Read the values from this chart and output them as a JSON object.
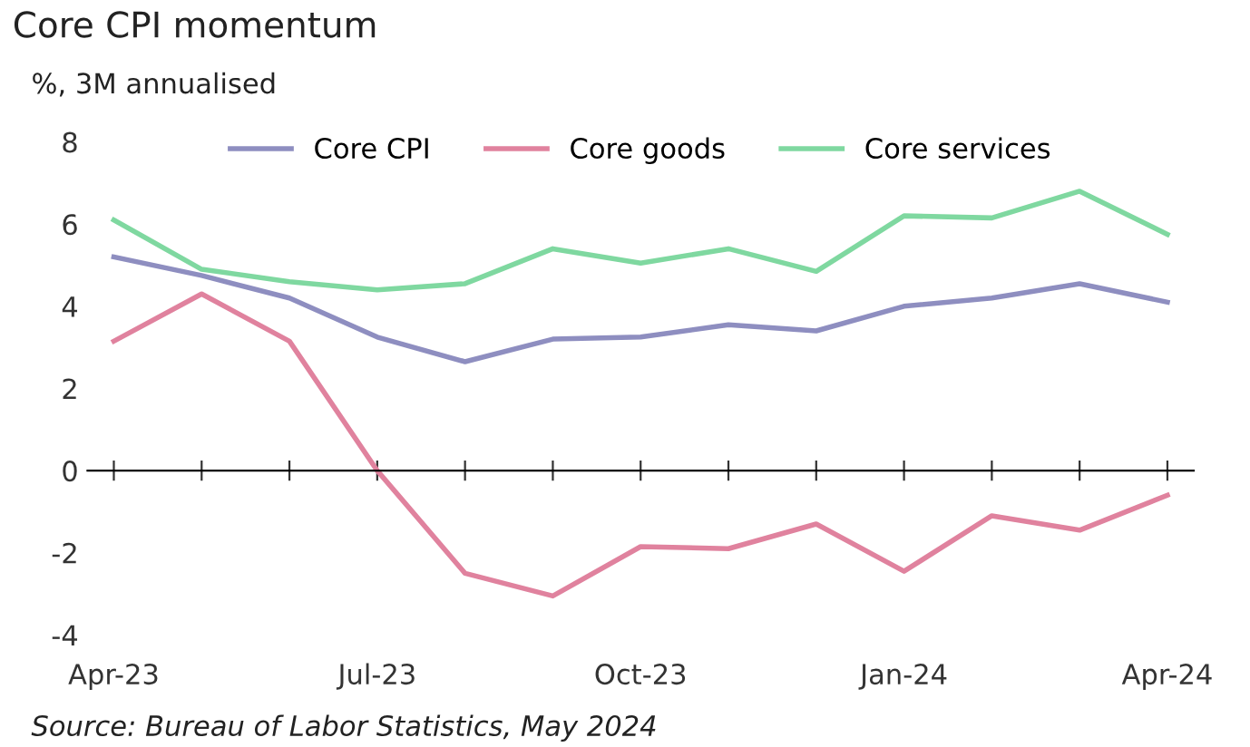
{
  "chart_data": {
    "type": "line",
    "title": "Core CPI momentum",
    "subtitle": "%, 3M annualised",
    "categories": [
      "Apr-23",
      null,
      null,
      "Jul-23",
      null,
      null,
      "Oct-23",
      null,
      null,
      "Jan-24",
      null,
      null,
      "Apr-24"
    ],
    "series": [
      {
        "name": "Core CPI",
        "color": "#8e8ec0",
        "values": [
          5.2,
          4.75,
          4.2,
          3.25,
          2.65,
          3.2,
          3.25,
          3.55,
          3.4,
          4.0,
          4.2,
          4.55,
          4.1
        ]
      },
      {
        "name": "Core goods",
        "color": "#e0829e",
        "values": [
          3.15,
          4.3,
          3.15,
          0.0,
          -2.5,
          -3.05,
          -1.85,
          -1.9,
          -1.3,
          -2.45,
          -1.1,
          -1.45,
          -0.6
        ]
      },
      {
        "name": "Core services",
        "color": "#7fd8a0",
        "values": [
          6.1,
          4.9,
          4.6,
          4.4,
          4.55,
          5.4,
          5.05,
          5.4,
          4.85,
          6.2,
          6.15,
          6.8,
          5.75
        ]
      }
    ],
    "ylim": [
      -4,
      8
    ],
    "yticks": [
      -4,
      -2,
      0,
      2,
      4,
      6,
      8
    ],
    "legend": "top",
    "marker": "none",
    "line_style": "solid",
    "annotations": [
      "Source: Bureau of Labor Statistics, May 2024"
    ]
  }
}
